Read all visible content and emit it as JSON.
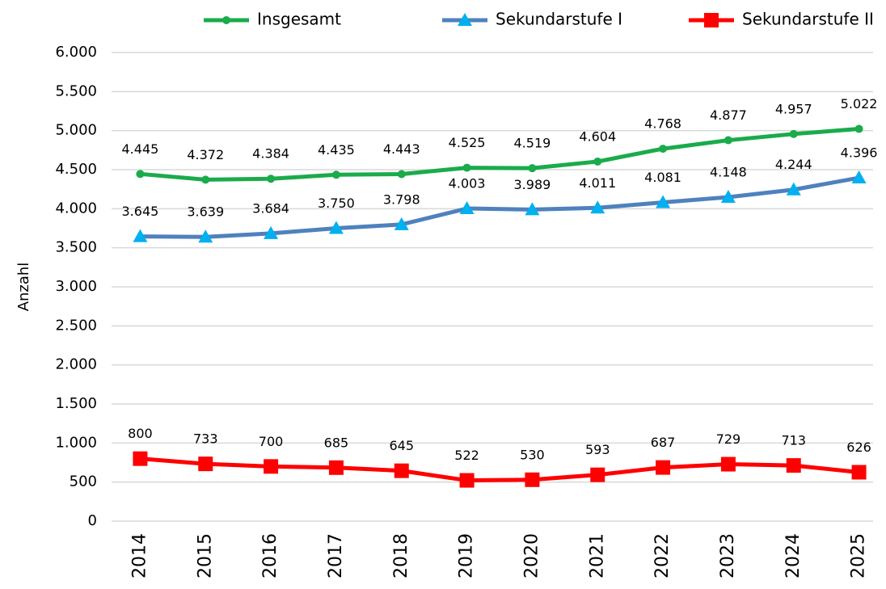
{
  "chart_data": {
    "type": "line",
    "y_label": "Anzahl",
    "categories": [
      "2014",
      "2015",
      "2016",
      "2017",
      "2018",
      "2019",
      "2020",
      "2021",
      "2022",
      "2023",
      "2024",
      "2025"
    ],
    "ylim": [
      0,
      6000
    ],
    "yticks": [
      0,
      {
        "value": 500,
        "label": "500"
      },
      {
        "value": 1000,
        "label": "1.000"
      },
      {
        "value": 1500,
        "label": "1.500"
      },
      {
        "value": 2000,
        "label": "2.000"
      },
      {
        "value": 2500,
        "label": "2.500"
      },
      {
        "value": 3000,
        "label": "3.000"
      },
      {
        "value": 3500,
        "label": "3.500"
      },
      {
        "value": 4000,
        "label": "4.000"
      },
      {
        "value": 4500,
        "label": "4.500"
      },
      {
        "value": 5000,
        "label": "5.000"
      },
      {
        "value": 5500,
        "label": "5.500"
      },
      {
        "value": 6000,
        "label": "6.000"
      }
    ],
    "grid": true,
    "legend": "top",
    "series": [
      {
        "name": "Insgesamt",
        "color": "#1aab4b",
        "marker": "circle",
        "marker_color": "#1aab4b",
        "values": [
          4445,
          4372,
          4384,
          4435,
          4443,
          4525,
          4519,
          4604,
          4768,
          4877,
          4957,
          5022
        ],
        "value_labels": [
          "4.445",
          "4.372",
          "4.384",
          "4.435",
          "4.443",
          "4.525",
          "4.519",
          "4.604",
          "4.768",
          "4.877",
          "4.957",
          "5.022"
        ]
      },
      {
        "name": "Sekundarstufe I",
        "color": "#4f81bd",
        "marker": "triangle",
        "marker_color": "#00b0f0",
        "values": [
          3645,
          3639,
          3684,
          3750,
          3798,
          4003,
          3989,
          4011,
          4081,
          4148,
          4244,
          4396
        ],
        "value_labels": [
          "3.645",
          "3.639",
          "3.684",
          "3.750",
          "3.798",
          "4.003",
          "3.989",
          "4.011",
          "4.081",
          "4.148",
          "4.244",
          "4.396"
        ]
      },
      {
        "name": "Sekundarstufe II",
        "color": "#ff0000",
        "marker": "square",
        "marker_color": "#ff0000",
        "values": [
          800,
          733,
          700,
          685,
          645,
          522,
          530,
          593,
          687,
          729,
          713,
          626
        ]
      }
    ]
  }
}
